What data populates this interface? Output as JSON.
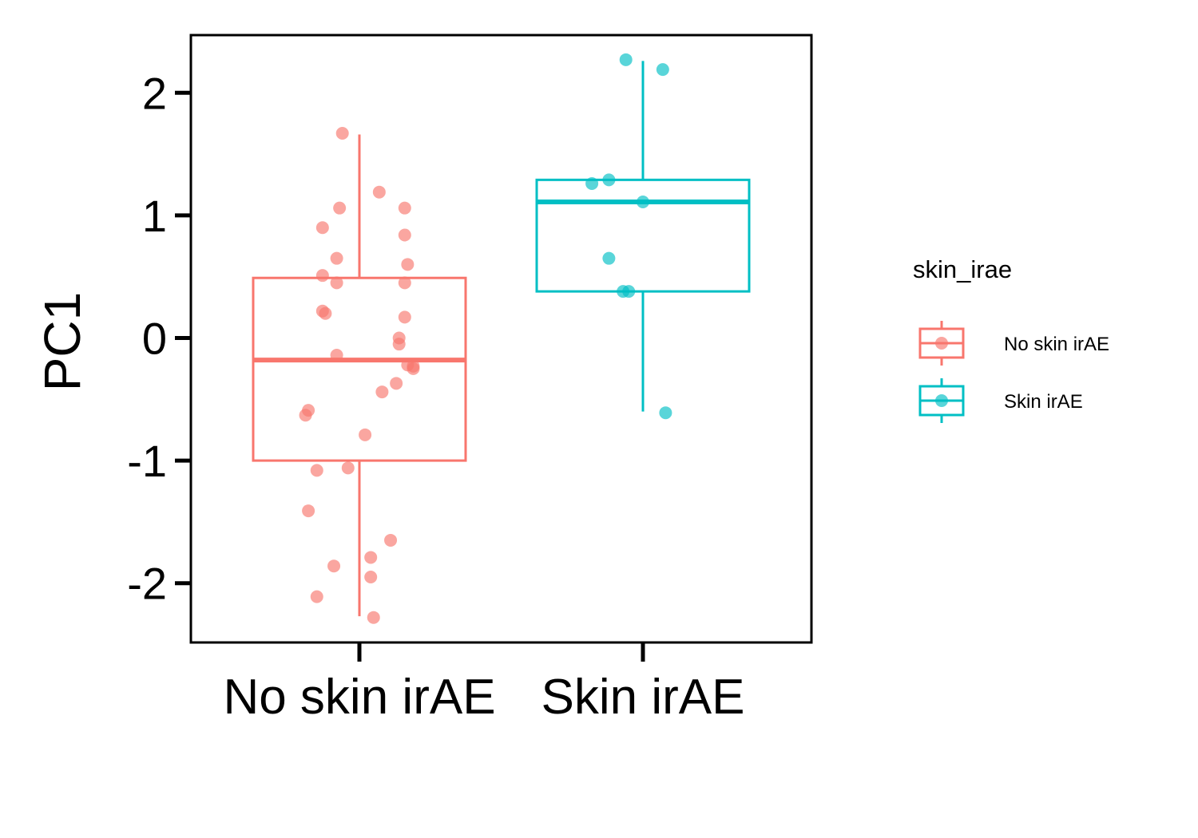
{
  "chart_data": {
    "type": "box",
    "ylabel": "PC1",
    "xlabel": "",
    "categories": [
      "No skin irAE",
      "Skin irAE"
    ],
    "ylim": [
      -2.5,
      2.5
    ],
    "yticks": [
      -2,
      -1,
      0,
      1,
      2
    ],
    "grid": false,
    "legend": {
      "title": "skin_irae",
      "position": "right",
      "entries": [
        "No skin irAE",
        "Skin irAE"
      ]
    },
    "series": [
      {
        "name": "No skin irAE",
        "color": "#F8766D",
        "box": {
          "min": -2.27,
          "q1": -1.0,
          "median": -0.18,
          "q3": 0.49,
          "max": 1.66
        },
        "points": [
          {
            "x": -0.06,
            "y": 1.67
          },
          {
            "x": 0.07,
            "y": 1.19
          },
          {
            "x": -0.07,
            "y": 1.06
          },
          {
            "x": 0.16,
            "y": 1.06
          },
          {
            "x": -0.13,
            "y": 0.9
          },
          {
            "x": 0.16,
            "y": 0.84
          },
          {
            "x": -0.08,
            "y": 0.65
          },
          {
            "x": 0.17,
            "y": 0.6
          },
          {
            "x": -0.13,
            "y": 0.51
          },
          {
            "x": -0.08,
            "y": 0.45
          },
          {
            "x": 0.16,
            "y": 0.45
          },
          {
            "x": -0.13,
            "y": 0.22
          },
          {
            "x": -0.12,
            "y": 0.2
          },
          {
            "x": 0.16,
            "y": 0.17
          },
          {
            "x": 0.14,
            "y": 0.0
          },
          {
            "x": 0.14,
            "y": -0.05
          },
          {
            "x": -0.08,
            "y": -0.14
          },
          {
            "x": 0.17,
            "y": -0.22
          },
          {
            "x": 0.19,
            "y": -0.23
          },
          {
            "x": 0.19,
            "y": -0.25
          },
          {
            "x": 0.13,
            "y": -0.37
          },
          {
            "x": 0.08,
            "y": -0.44
          },
          {
            "x": -0.18,
            "y": -0.59
          },
          {
            "x": -0.19,
            "y": -0.63
          },
          {
            "x": 0.02,
            "y": -0.79
          },
          {
            "x": -0.15,
            "y": -1.08
          },
          {
            "x": -0.04,
            "y": -1.06
          },
          {
            "x": -0.18,
            "y": -1.41
          },
          {
            "x": 0.11,
            "y": -1.65
          },
          {
            "x": 0.04,
            "y": -1.79
          },
          {
            "x": -0.09,
            "y": -1.86
          },
          {
            "x": 0.04,
            "y": -1.95
          },
          {
            "x": -0.15,
            "y": -2.11
          },
          {
            "x": 0.05,
            "y": -2.28
          }
        ]
      },
      {
        "name": "Skin irAE",
        "color": "#00BFC4",
        "box": {
          "min": -0.6,
          "q1": 0.38,
          "median": 1.11,
          "q3": 1.29,
          "max": 2.26
        },
        "points": [
          {
            "x": -0.06,
            "y": 2.27
          },
          {
            "x": 0.07,
            "y": 2.19
          },
          {
            "x": -0.18,
            "y": 1.26
          },
          {
            "x": -0.12,
            "y": 1.29
          },
          {
            "x": 0.0,
            "y": 1.11
          },
          {
            "x": -0.12,
            "y": 0.65
          },
          {
            "x": -0.07,
            "y": 0.38
          },
          {
            "x": -0.05,
            "y": 0.38
          },
          {
            "x": 0.08,
            "y": -0.61
          }
        ]
      }
    ]
  }
}
